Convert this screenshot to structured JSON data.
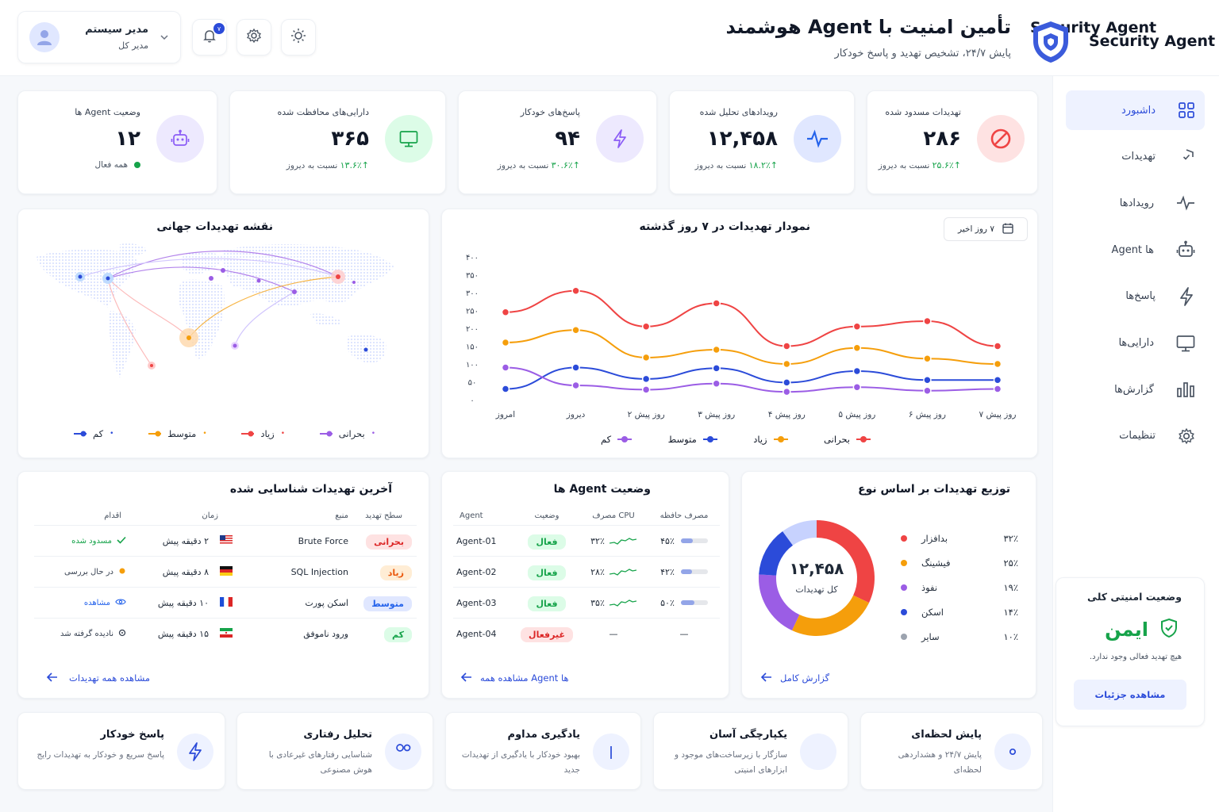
{
  "app": {
    "name": "Security Agent",
    "title": "تأمین امنیت با Agent هوشمند",
    "subtitle": "پایش ۲۴/۷، تشخیص تهدید و پاسخ خودکار"
  },
  "user": {
    "name": "مدیر سیستم",
    "role": "مدیر کل",
    "notifications": "۷"
  },
  "nav": [
    {
      "label": "داشبورد",
      "icon": "dashboard-icon",
      "active": true
    },
    {
      "label": "تهدیدات",
      "icon": "shield-icon"
    },
    {
      "label": "رویدادها",
      "icon": "activity-icon"
    },
    {
      "label": "Agent ها",
      "icon": "robot-icon"
    },
    {
      "label": "پاسخ‌ها",
      "icon": "bolt-icon"
    },
    {
      "label": "دارایی‌ها",
      "icon": "monitor-icon"
    },
    {
      "label": "گزارش‌ها",
      "icon": "bar-chart-icon"
    },
    {
      "label": "تنظیمات",
      "icon": "gear-icon"
    }
  ],
  "security_status": {
    "title": "وضعیت امنیتی کلی",
    "status": "ایمن",
    "desc": "هیچ تهدید فعالی وجود ندارد.",
    "button": "مشاهده جزئیات"
  },
  "stats": [
    {
      "title": "تهدیدات مسدود شده",
      "value": "۲۸۶",
      "change": "↑۲۵.۶٪",
      "suffix": "نسبت به دیروز",
      "icon": "block-icon",
      "color": "#ef4444"
    },
    {
      "title": "رویدادهای تحلیل شده",
      "value": "۱۲,۴۵۸",
      "change": "↑۱۸.۲٪",
      "suffix": "نسبت به دیروز",
      "icon": "pulse-icon",
      "color": "#2563eb"
    },
    {
      "title": "پاسخ‌های خودکار",
      "value": "۹۴",
      "change": "↑۳۰.۶٪",
      "suffix": "نسبت به دیروز",
      "icon": "bolt-icon",
      "color": "#8b5cf6"
    },
    {
      "title": "دارایی‌های محافظت شده",
      "value": "۳۶۵",
      "change": "↑۱۳.۶٪",
      "suffix": "نسبت به دیروز",
      "icon": "monitor-icon",
      "color": "#16a34a"
    },
    {
      "title": "وضعیت Agent ها",
      "value": "۱۲",
      "status": "همه فعال",
      "icon": "robot-icon",
      "color": "#8b5cf6"
    }
  ],
  "map": {
    "title": "نقشه تهدیدات جهانی",
    "legend": [
      "بحرانی",
      "زیاد",
      "متوسط",
      "کم"
    ]
  },
  "chart": {
    "title": "نمودار تهدیدات در ۷ روز گذشته",
    "range": "۷ روز اخیر"
  },
  "chart_data": {
    "type": "line",
    "categories": [
      "۷ روز پیش",
      "۶ روز پیش",
      "۵ روز پیش",
      "۴ روز پیش",
      "۳ روز پیش",
      "۲ روز پیش",
      "دیروز",
      "امروز"
    ],
    "y_ticks": [
      "۰",
      "۵۰",
      "۱۰۰",
      "۱۵۰",
      "۲۰۰",
      "۲۵۰",
      "۳۰۰",
      "۳۵۰",
      "۴۰۰"
    ],
    "ylim": [
      0,
      400
    ],
    "series": [
      {
        "name": "بحرانی",
        "color": "#ef4444",
        "values": [
          150,
          220,
          205,
          150,
          270,
          205,
          305,
          245
        ]
      },
      {
        "name": "زیاد",
        "color": "#f59e0b",
        "values": [
          100,
          115,
          145,
          100,
          140,
          118,
          195,
          160
        ]
      },
      {
        "name": "متوسط",
        "color": "#2b4bd9",
        "values": [
          55,
          55,
          80,
          48,
          88,
          58,
          90,
          30
        ]
      },
      {
        "name": "کم",
        "color": "#9b5de5",
        "values": [
          30,
          25,
          35,
          22,
          45,
          28,
          40,
          90
        ]
      }
    ]
  },
  "threats": {
    "title": "آخرین تهدیدات شناسایی شده",
    "headers": [
      "سطح تهدید",
      "منبع",
      "زمان",
      "اقدام"
    ],
    "rows": [
      {
        "level": "بحرانی",
        "levelColor": "#dc2626",
        "levelBg": "#fee2e2",
        "source": "Brute Force",
        "flag": "us-flag-icon",
        "time": "۲ دقیقه پیش",
        "action": "مسدود شده",
        "actionColor": "#16a34a",
        "actionIcon": "check-icon"
      },
      {
        "level": "زیاد",
        "levelColor": "#ea580c",
        "levelBg": "#ffedd5",
        "source": "SQL Injection",
        "flag": "de-flag-icon",
        "time": "۸ دقیقه پیش",
        "action": "در حال بررسی",
        "actionColor": "#374151",
        "actionIcon": "dot-icon"
      },
      {
        "level": "متوسط",
        "levelColor": "#2563eb",
        "levelBg": "#e0e7ff",
        "source": "اسکن پورت",
        "flag": "fr-flag-icon",
        "time": "۱۰ دقیقه پیش",
        "action": "مشاهده",
        "actionColor": "#2563eb",
        "actionIcon": "eye-icon"
      },
      {
        "level": "کم",
        "levelColor": "#16a34a",
        "levelBg": "#dcfce7",
        "source": "ورود ناموفق",
        "flag": "ir-flag-icon",
        "time": "۱۵ دقیقه پیش",
        "action": "نادیده گرفته شد",
        "actionColor": "#374151",
        "actionIcon": "circle-icon"
      }
    ],
    "link": "مشاهده همه تهدیدات"
  },
  "agents": {
    "title": "وضعیت Agent ها",
    "headers": [
      "Agent",
      "وضعیت",
      "مصرف CPU",
      "مصرف حافظه"
    ],
    "rows": [
      {
        "name": "Agent-01",
        "status": "فعال",
        "active": true,
        "cpu": "۳۲٪",
        "mem": "۴۵٪",
        "memLevel": 0.45
      },
      {
        "name": "Agent-02",
        "status": "فعال",
        "active": true,
        "cpu": "۲۸٪",
        "mem": "۴۲٪",
        "memLevel": 0.42
      },
      {
        "name": "Agent-03",
        "status": "فعال",
        "active": true,
        "cpu": "۳۵٪",
        "mem": "۵۰٪",
        "memLevel": 0.5
      },
      {
        "name": "Agent-04",
        "status": "غیرفعال",
        "active": false,
        "cpu": "—",
        "mem": "—",
        "memLevel": 0
      }
    ],
    "link": "مشاهده همه Agent ها"
  },
  "distribution": {
    "title": "توزیع تهدیدات بر اساس نوع",
    "total": "۱۲,۴۵۸",
    "total_label": "کل تهدیدات",
    "items": [
      {
        "label": "بدافزار",
        "pct": "۳۲٪",
        "value": 32,
        "color": "#ef4444"
      },
      {
        "label": "فیشینگ",
        "pct": "۲۵٪",
        "value": 25,
        "color": "#f59e0b"
      },
      {
        "label": "نفوذ",
        "pct": "۱۹٪",
        "value": 19,
        "color": "#9b5de5"
      },
      {
        "label": "اسکن",
        "pct": "۱۴٪",
        "value": 14,
        "color": "#2b4bd9"
      },
      {
        "label": "سایر",
        "pct": "۱۰٪",
        "value": 10,
        "color": "#9ca3af"
      }
    ],
    "link": "گزارش کامل"
  },
  "features": [
    {
      "title": "پایش لحظه‌ای",
      "desc": "پایش ۲۴/۷ و هشداردهی لحظه‌ای",
      "icon": "eye-icon"
    },
    {
      "title": "یکپارچگی آسان",
      "desc": "سازگار با زیرساخت‌های موجود و ابزارهای امنیتی",
      "icon": "puzzle-icon"
    },
    {
      "title": "یادگیری مداوم",
      "desc": "بهبود خودکار با یادگیری از تهدیدات جدید",
      "icon": "book-icon"
    },
    {
      "title": "تحلیل رفتاری",
      "desc": "شناسایی رفتارهای غیرعادی با هوش مصنوعی",
      "icon": "users-icon"
    },
    {
      "title": "پاسخ خودکار",
      "desc": "پاسخ سریع و خودکار به تهدیدات رایج",
      "icon": "bolt-icon"
    }
  ]
}
